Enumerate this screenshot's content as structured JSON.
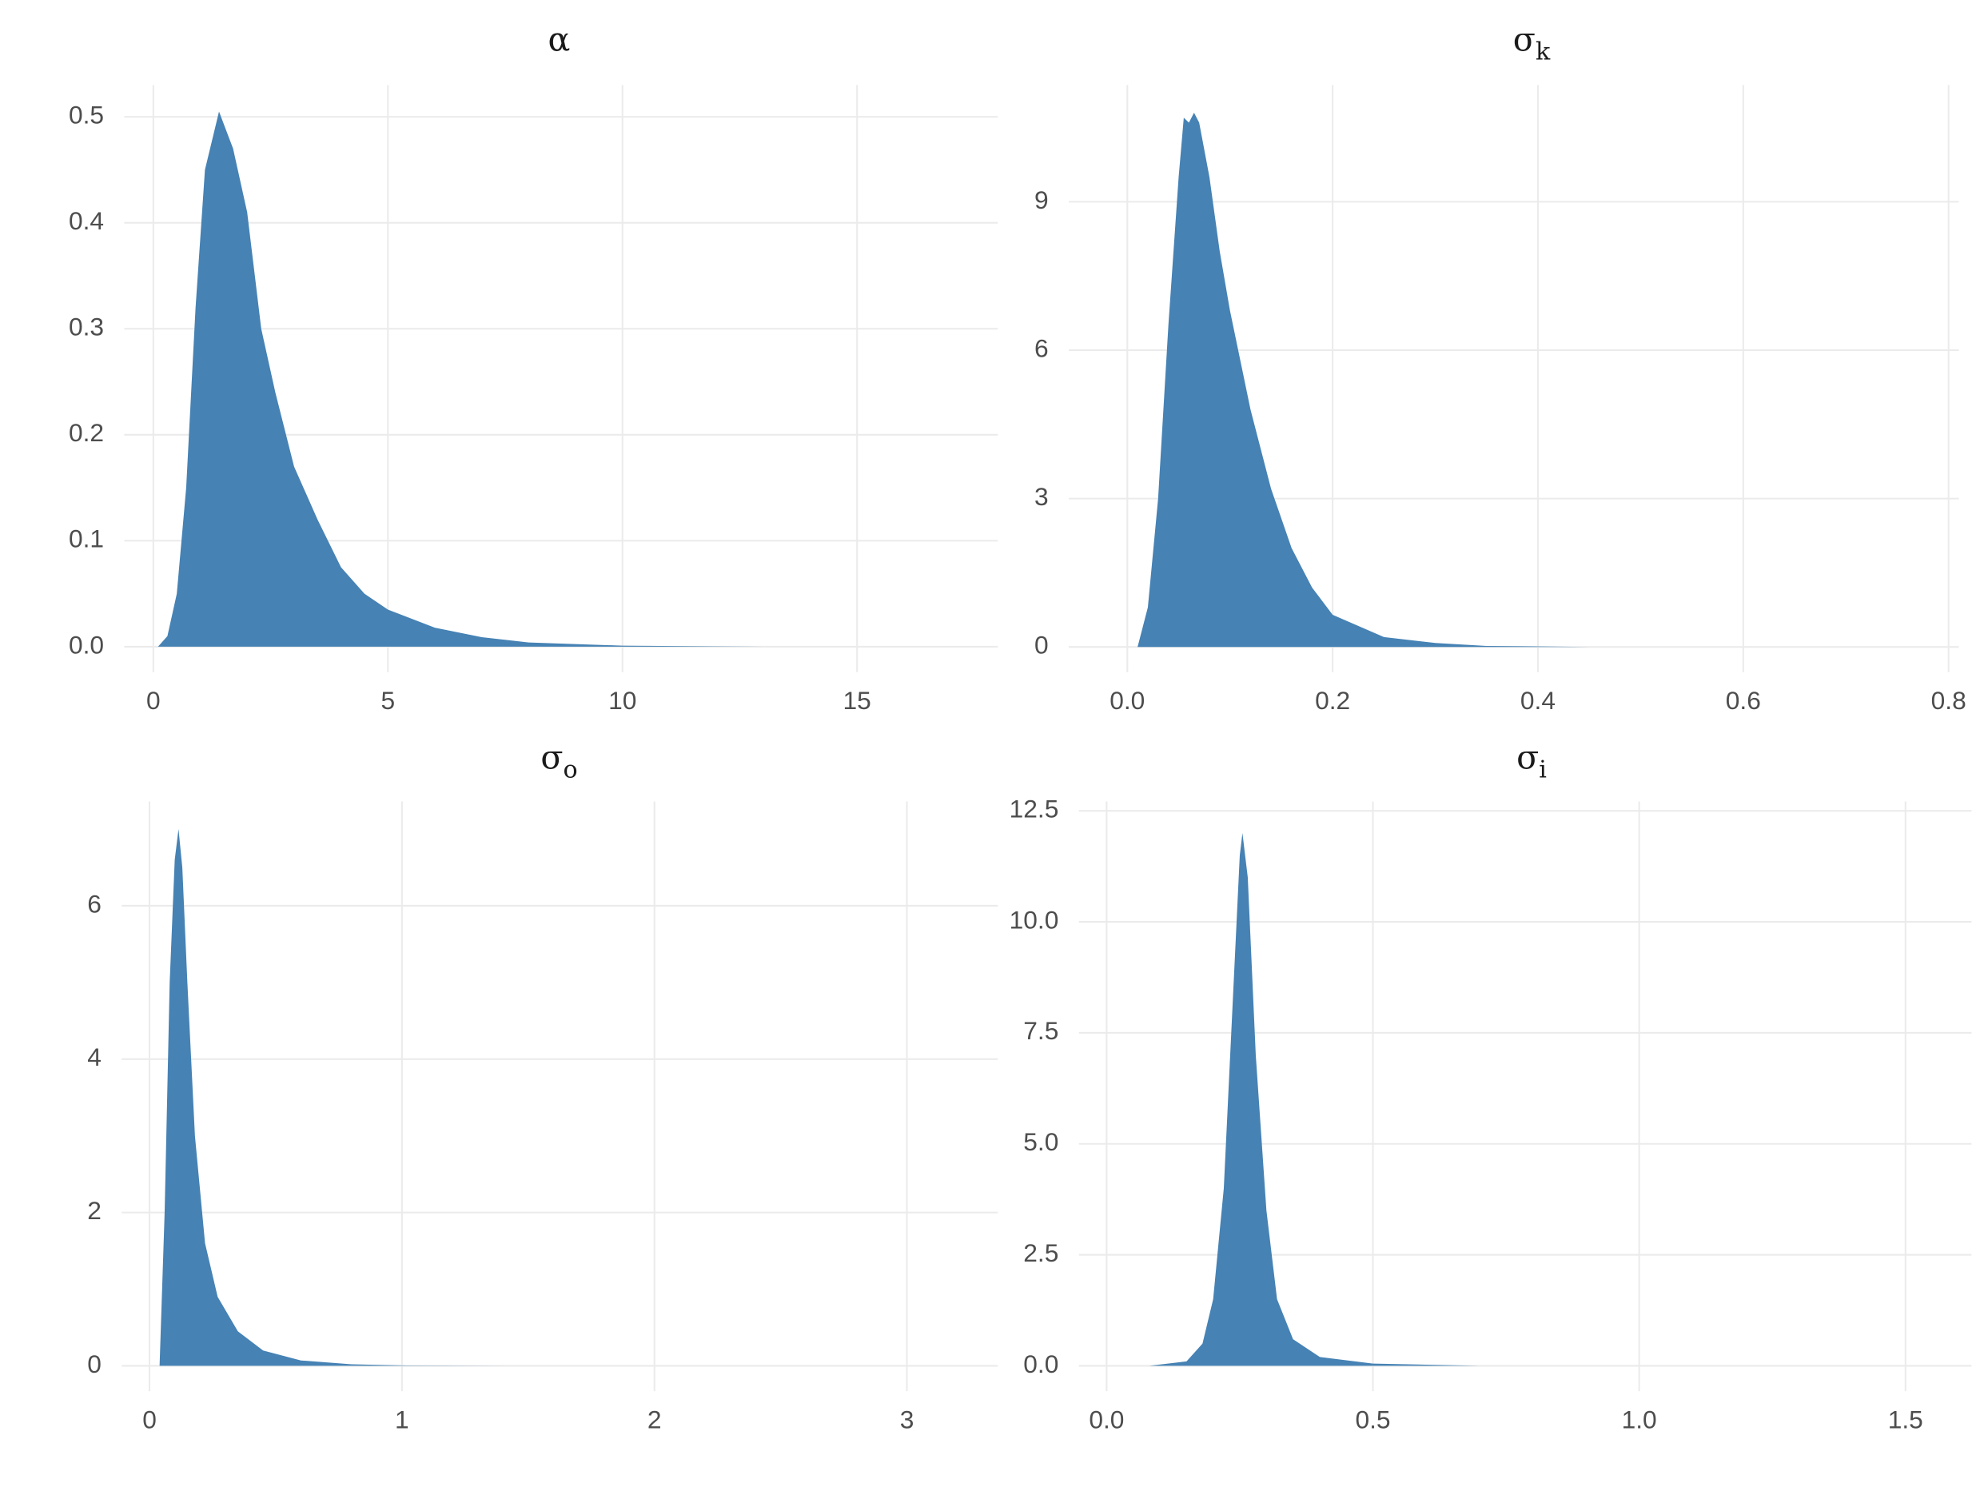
{
  "chart_data": [
    {
      "type": "area",
      "title": "α",
      "color": "#4682b4",
      "grid": true,
      "x": [
        0.1,
        0.3,
        0.5,
        0.7,
        0.9,
        1.1,
        1.4,
        1.7,
        2.0,
        2.3,
        2.6,
        3.0,
        3.5,
        4.0,
        4.5,
        5,
        6,
        7,
        8,
        10,
        13,
        17
      ],
      "values": [
        0,
        0.01,
        0.05,
        0.15,
        0.32,
        0.45,
        0.505,
        0.47,
        0.41,
        0.3,
        0.24,
        0.17,
        0.12,
        0.075,
        0.05,
        0.035,
        0.018,
        0.009,
        0.004,
        0.001,
        0,
        0
      ],
      "xlim": [
        -0.62,
        18.0
      ],
      "ylim": [
        -0.024,
        0.53
      ],
      "xticks": [
        0,
        5,
        10,
        15
      ],
      "yticks": [
        {
          "value": 0,
          "label": "0.0"
        },
        0.1,
        0.2,
        0.3,
        0.4,
        0.5
      ]
    },
    {
      "type": "area",
      "title": "σ",
      "title_subscript": "k",
      "color": "#4682b4",
      "grid": true,
      "x": [
        0.01,
        0.02,
        0.03,
        0.04,
        0.05,
        0.055,
        0.06,
        0.065,
        0.07,
        0.08,
        0.09,
        0.1,
        0.12,
        0.14,
        0.16,
        0.18,
        0.2,
        0.25,
        0.3,
        0.35,
        0.45,
        0.8
      ],
      "values": [
        0,
        0.8,
        3,
        6.5,
        9.5,
        10.7,
        10.6,
        10.8,
        10.6,
        9.5,
        8,
        6.8,
        4.8,
        3.2,
        2,
        1.2,
        0.65,
        0.2,
        0.08,
        0.02,
        0,
        0
      ],
      "xlim": [
        -0.057,
        0.81
      ],
      "ylim": [
        -0.51,
        11.36
      ],
      "xticks": [
        {
          "value": 0,
          "label": "0.0"
        },
        0.2,
        0.4,
        0.6,
        0.8
      ],
      "yticks": [
        0,
        3,
        6,
        9
      ]
    },
    {
      "type": "area",
      "title": "σ",
      "title_subscript": "o",
      "color": "#4682b4",
      "grid": true,
      "x": [
        0.04,
        0.06,
        0.08,
        0.1,
        0.115,
        0.13,
        0.15,
        0.18,
        0.22,
        0.27,
        0.35,
        0.45,
        0.6,
        0.8,
        1.0,
        1.5,
        3.2
      ],
      "values": [
        0,
        2,
        5,
        6.6,
        7.0,
        6.5,
        5,
        3,
        1.6,
        0.9,
        0.45,
        0.2,
        0.07,
        0.02,
        0.005,
        0,
        0
      ],
      "xlim": [
        -0.11,
        3.36
      ],
      "ylim": [
        -0.33,
        7.36
      ],
      "xticks": [
        0,
        1,
        2,
        3
      ],
      "yticks": [
        0,
        2,
        4,
        6
      ]
    },
    {
      "type": "area",
      "title": "σ",
      "title_subscript": "i",
      "color": "#4682b4",
      "grid": true,
      "x": [
        0.08,
        0.15,
        0.18,
        0.2,
        0.22,
        0.24,
        0.25,
        0.255,
        0.265,
        0.28,
        0.3,
        0.32,
        0.35,
        0.4,
        0.5,
        0.7,
        1.5
      ],
      "values": [
        0,
        0.1,
        0.5,
        1.5,
        4,
        9,
        11.5,
        12,
        11,
        7,
        3.5,
        1.5,
        0.6,
        0.2,
        0.05,
        0,
        0
      ],
      "xlim": [
        -0.052,
        1.624
      ],
      "ylim": [
        -0.57,
        12.71
      ],
      "xticks": [
        {
          "value": 0,
          "label": "0.0"
        },
        0.5,
        {
          "value": 1,
          "label": "1.0"
        },
        1.5
      ],
      "yticks": [
        {
          "value": 0,
          "label": "0.0"
        },
        2.5,
        {
          "value": 5,
          "label": "5.0"
        },
        7.5,
        {
          "value": 10,
          "label": "10.0"
        },
        12.5
      ]
    }
  ]
}
